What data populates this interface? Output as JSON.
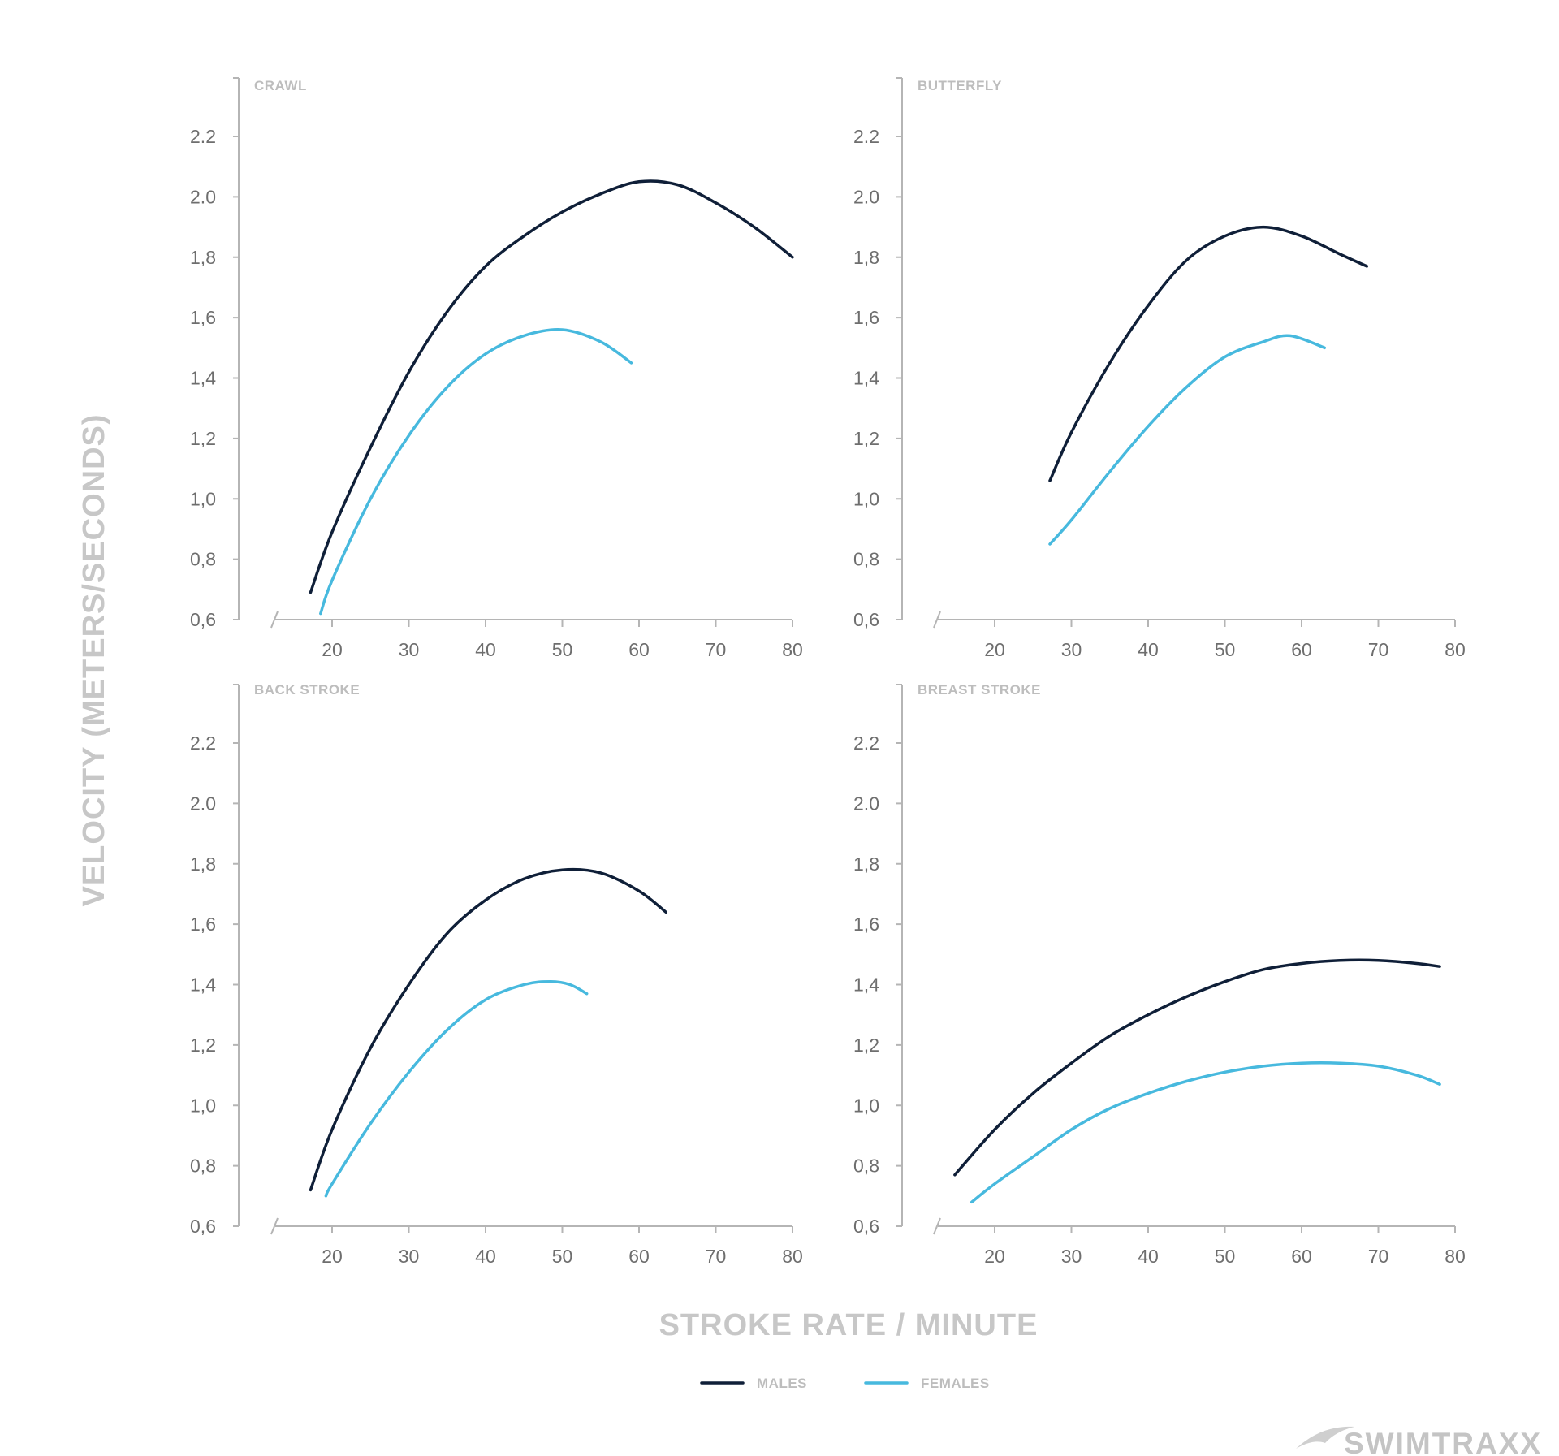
{
  "colors": {
    "males": "#0f1f38",
    "females": "#47b9de",
    "axis": "#b5b5b5",
    "text": "#6e6e6e",
    "muted": "#c7c7c7"
  },
  "y_axis_title": "VELOCITY (METERS/SECONDS)",
  "x_axis_title": "STROKE RATE / MINUTE",
  "legend": {
    "males": "MALES",
    "females": "FEMALES",
    "position": "bottom-center"
  },
  "logo": {
    "text": "SWIMTRAXX",
    "icon": "swimmer-swoosh-icon"
  },
  "chart_data": [
    {
      "type": "line",
      "title": "CRAWL",
      "xlabel": "STROKE RATE / MINUTE",
      "ylabel": "VELOCITY (METERS/SECONDS)",
      "xlim": [
        20,
        80
      ],
      "ylim": [
        0.6,
        2.2
      ],
      "x_ticks": [
        20,
        30,
        40,
        50,
        60,
        70,
        80
      ],
      "y_ticks": [
        "0,6",
        "0,8",
        "1,0",
        "1,2",
        "1,4",
        "1,6",
        "1,8",
        "2.0",
        "2.2"
      ],
      "grid": false,
      "series": [
        {
          "name": "MALES",
          "points": [
            [
              17.2,
              0.69
            ],
            [
              20,
              0.89
            ],
            [
              25,
              1.17
            ],
            [
              30,
              1.42
            ],
            [
              35,
              1.62
            ],
            [
              40,
              1.77
            ],
            [
              45,
              1.87
            ],
            [
              50,
              1.95
            ],
            [
              55,
              2.01
            ],
            [
              60,
              2.05
            ],
            [
              65,
              2.04
            ],
            [
              70,
              1.98
            ],
            [
              75,
              1.9
            ],
            [
              80,
              1.8
            ]
          ]
        },
        {
          "name": "FEMALES",
          "points": [
            [
              18.5,
              0.62
            ],
            [
              20,
              0.73
            ],
            [
              25,
              1.0
            ],
            [
              30,
              1.21
            ],
            [
              35,
              1.37
            ],
            [
              40,
              1.48
            ],
            [
              45,
              1.54
            ],
            [
              50,
              1.56
            ],
            [
              55,
              1.52
            ],
            [
              59,
              1.45
            ]
          ]
        }
      ]
    },
    {
      "type": "line",
      "title": "BUTTERFLY",
      "xlabel": "STROKE RATE / MINUTE",
      "ylabel": "VELOCITY (METERS/SECONDS)",
      "xlim": [
        20,
        80
      ],
      "ylim": [
        0.6,
        2.2
      ],
      "x_ticks": [
        20,
        30,
        40,
        50,
        60,
        70,
        80
      ],
      "y_ticks": [
        "0,6",
        "0,8",
        "1,0",
        "1,2",
        "1,4",
        "1,6",
        "1,8",
        "2.0",
        "2.2"
      ],
      "grid": false,
      "series": [
        {
          "name": "MALES",
          "points": [
            [
              27.2,
              1.06
            ],
            [
              30,
              1.22
            ],
            [
              35,
              1.45
            ],
            [
              40,
              1.64
            ],
            [
              45,
              1.79
            ],
            [
              50,
              1.87
            ],
            [
              55,
              1.9
            ],
            [
              60,
              1.87
            ],
            [
              65,
              1.81
            ],
            [
              68.5,
              1.77
            ]
          ]
        },
        {
          "name": "FEMALES",
          "points": [
            [
              27.2,
              0.85
            ],
            [
              30,
              0.93
            ],
            [
              35,
              1.09
            ],
            [
              40,
              1.24
            ],
            [
              45,
              1.37
            ],
            [
              50,
              1.47
            ],
            [
              55,
              1.52
            ],
            [
              58.5,
              1.54
            ],
            [
              63,
              1.5
            ]
          ]
        }
      ]
    },
    {
      "type": "line",
      "title": "BACK STROKE",
      "xlabel": "STROKE RATE / MINUTE",
      "ylabel": "VELOCITY (METERS/SECONDS)",
      "xlim": [
        20,
        80
      ],
      "ylim": [
        0.6,
        2.2
      ],
      "x_ticks": [
        20,
        30,
        40,
        50,
        60,
        70,
        80
      ],
      "y_ticks": [
        "0,6",
        "0,8",
        "1,0",
        "1,2",
        "1,4",
        "1,6",
        "1,8",
        "2.0",
        "2.2"
      ],
      "grid": false,
      "series": [
        {
          "name": "MALES",
          "points": [
            [
              17.2,
              0.72
            ],
            [
              20,
              0.92
            ],
            [
              25,
              1.19
            ],
            [
              30,
              1.4
            ],
            [
              35,
              1.57
            ],
            [
              40,
              1.68
            ],
            [
              45,
              1.75
            ],
            [
              50,
              1.78
            ],
            [
              55,
              1.77
            ],
            [
              60,
              1.71
            ],
            [
              63.5,
              1.64
            ]
          ]
        },
        {
          "name": "FEMALES",
          "points": [
            [
              19.2,
              0.7
            ],
            [
              20,
              0.74
            ],
            [
              25,
              0.94
            ],
            [
              30,
              1.11
            ],
            [
              35,
              1.25
            ],
            [
              40,
              1.35
            ],
            [
              45,
              1.4
            ],
            [
              48.5,
              1.41
            ],
            [
              51,
              1.4
            ],
            [
              53.2,
              1.37
            ]
          ]
        }
      ]
    },
    {
      "type": "line",
      "title": "BREAST STROKE",
      "xlabel": "STROKE RATE / MINUTE",
      "ylabel": "VELOCITY (METERS/SECONDS)",
      "xlim": [
        20,
        80
      ],
      "ylim": [
        0.6,
        2.2
      ],
      "x_ticks": [
        20,
        30,
        40,
        50,
        60,
        70,
        80
      ],
      "y_ticks": [
        "0,6",
        "0,8",
        "1,0",
        "1,2",
        "1,4",
        "1,6",
        "1,8",
        "2.0",
        "2.2"
      ],
      "grid": false,
      "series": [
        {
          "name": "MALES",
          "points": [
            [
              14.8,
              0.77
            ],
            [
              20,
              0.92
            ],
            [
              25,
              1.04
            ],
            [
              30,
              1.14
            ],
            [
              35,
              1.23
            ],
            [
              40,
              1.3
            ],
            [
              45,
              1.36
            ],
            [
              50,
              1.41
            ],
            [
              55,
              1.45
            ],
            [
              60,
              1.47
            ],
            [
              65,
              1.48
            ],
            [
              70,
              1.48
            ],
            [
              75,
              1.47
            ],
            [
              78,
              1.46
            ]
          ]
        },
        {
          "name": "FEMALES",
          "points": [
            [
              17,
              0.68
            ],
            [
              20,
              0.74
            ],
            [
              25,
              0.83
            ],
            [
              30,
              0.92
            ],
            [
              35,
              0.99
            ],
            [
              40,
              1.04
            ],
            [
              45,
              1.08
            ],
            [
              50,
              1.11
            ],
            [
              55,
              1.13
            ],
            [
              60,
              1.14
            ],
            [
              65,
              1.14
            ],
            [
              70,
              1.13
            ],
            [
              75,
              1.1
            ],
            [
              78,
              1.07
            ]
          ]
        }
      ]
    }
  ]
}
